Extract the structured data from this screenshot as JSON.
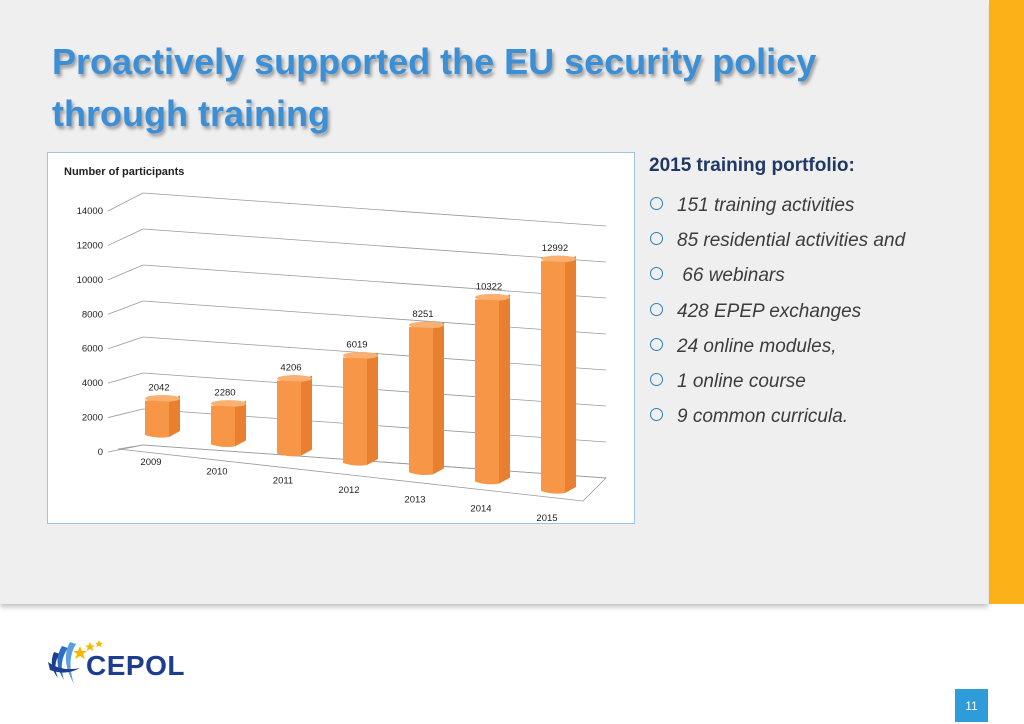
{
  "title": "Proactively supported the EU security policy through training",
  "chart_data": {
    "type": "bar",
    "title": "Number of participants",
    "categories": [
      "2009",
      "2010",
      "2011",
      "2012",
      "2013",
      "2014",
      "2015"
    ],
    "values": [
      2042,
      2280,
      4206,
      6019,
      8251,
      10322,
      12992
    ],
    "yticks": [
      0,
      2000,
      4000,
      6000,
      8000,
      10000,
      12000,
      14000
    ],
    "ylim": [
      0,
      14000
    ],
    "grid": true,
    "bar_color": "#f79646"
  },
  "portfolio": {
    "heading": "2015 training portfolio:",
    "items": [
      "151 training activities",
      "85 residential activities and",
      " 66 webinars",
      "428 EPEP exchanges",
      "24 online modules,",
      "1 online course",
      "9 common curricula."
    ]
  },
  "logo": {
    "text": "CEPOL"
  },
  "page_number": "11",
  "colors": {
    "accent": "#3a8fd6",
    "sidebar": "#fbb117",
    "page_badge": "#2e9cd9"
  }
}
